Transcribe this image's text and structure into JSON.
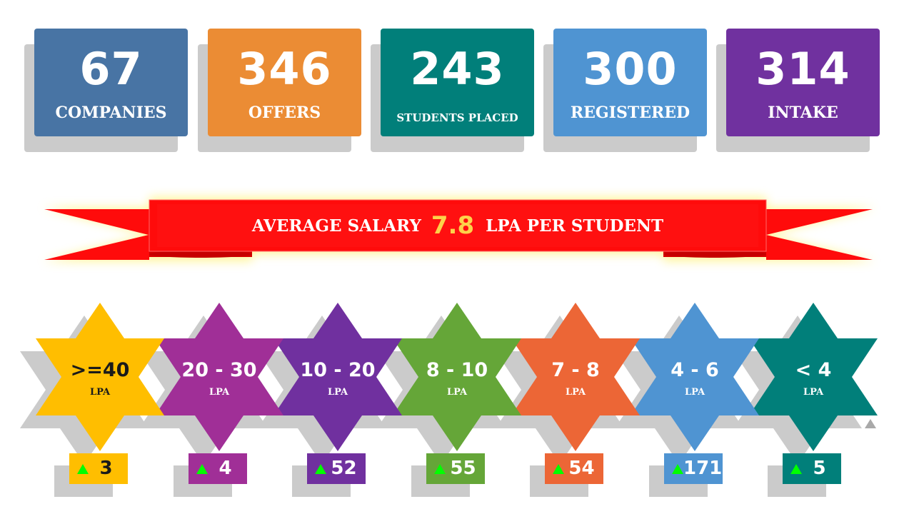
{
  "stats": [
    {
      "value": "67",
      "label": "COMPANIES",
      "color": "#4874a4"
    },
    {
      "value": "346",
      "label": "OFFERS",
      "color": "#eb8c34"
    },
    {
      "value": "243",
      "label": "STUDENTS PLACED",
      "color": "#017f7a"
    },
    {
      "value": "300",
      "label": "REGISTERED",
      "color": "#4f94d2"
    },
    {
      "value": "314",
      "label": "INTAKE",
      "color": "#70319f"
    }
  ],
  "banner": {
    "prefix": "AVERAGE SALARY",
    "value": "7.8",
    "suffix": "LPA PER STUDENT",
    "ribbon_color": "#ff0b0b",
    "value_color": "#fdd24a"
  },
  "salary_bands": [
    {
      "range": ">=40",
      "unit": "LPA",
      "count": "3",
      "color": "#ffbe00",
      "text_color": "#1a1a1a"
    },
    {
      "range": "20 - 30",
      "unit": "LPA",
      "count": "4",
      "color": "#a02f97",
      "text_color": "#ffffff"
    },
    {
      "range": "10 - 20",
      "unit": "LPA",
      "count": "52",
      "color": "#70309f",
      "text_color": "#ffffff"
    },
    {
      "range": "8 - 10",
      "unit": "LPA",
      "count": "55",
      "color": "#65a638",
      "text_color": "#ffffff"
    },
    {
      "range": "7 - 8",
      "unit": "LPA",
      "count": "54",
      "color": "#ec6636",
      "text_color": "#ffffff"
    },
    {
      "range": "4 - 6",
      "unit": "LPA",
      "count": "171",
      "color": "#4f94d2",
      "text_color": "#ffffff"
    },
    {
      "range": "< 4",
      "unit": "LPA",
      "count": "5",
      "color": "#017f7a",
      "text_color": "#ffffff"
    }
  ],
  "icons": {
    "badge_indicator": "triangle-up-icon",
    "indicator_color": "#00ff00"
  }
}
